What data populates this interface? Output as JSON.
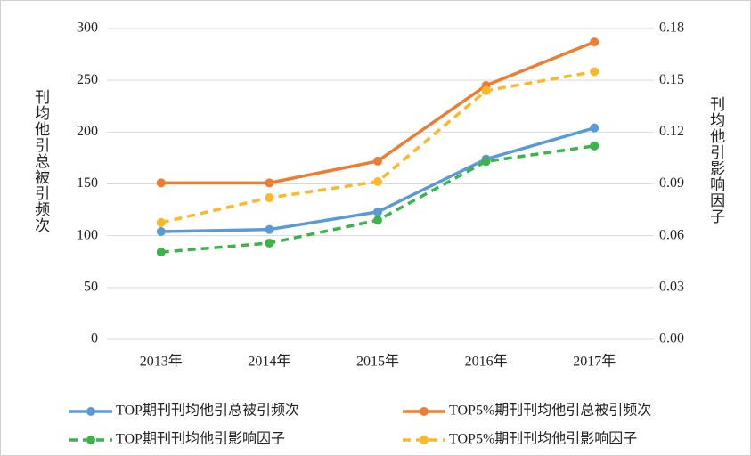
{
  "chart_data": {
    "type": "line",
    "categories": [
      "2013年",
      "2014年",
      "2015年",
      "2016年",
      "2017年"
    ],
    "ylabel": "刊均他引总被引频次",
    "y2label": "刊均他引影响因子",
    "ylim": [
      0,
      300
    ],
    "yticks": [
      0,
      50,
      100,
      150,
      200,
      250,
      300
    ],
    "y2lim": [
      0,
      0.18
    ],
    "y2ticks": [
      {
        "value": 0,
        "label": "0.00"
      },
      0.03,
      0.06,
      0.09,
      0.12,
      0.15,
      0.18
    ],
    "grid": true,
    "series": [
      {
        "name": "TOP期刊刊均他引总被引频次",
        "color": "#5b9bd5",
        "line_style": "solid",
        "values": [
          104,
          106,
          123,
          174,
          204
        ]
      },
      {
        "name": "TOP5%期刊刊均他引总被引频次",
        "color": "#ed7d31",
        "line_style": "solid",
        "values": [
          151,
          151,
          172,
          245,
          287
        ]
      },
      {
        "name": "TOP期刊刊均他引影响因子",
        "color": "#3cb44b",
        "line_style": "dashed",
        "axis": "y2",
        "values": [
          0.0505,
          0.0557,
          0.069,
          0.103,
          0.112
        ]
      },
      {
        "name": "TOP5%期刊刊均他引影响因子",
        "color": "#fbb829",
        "line_style": "dashed",
        "axis": "y2",
        "values": [
          0.0676,
          0.082,
          0.0913,
          0.144,
          0.155
        ]
      }
    ]
  }
}
